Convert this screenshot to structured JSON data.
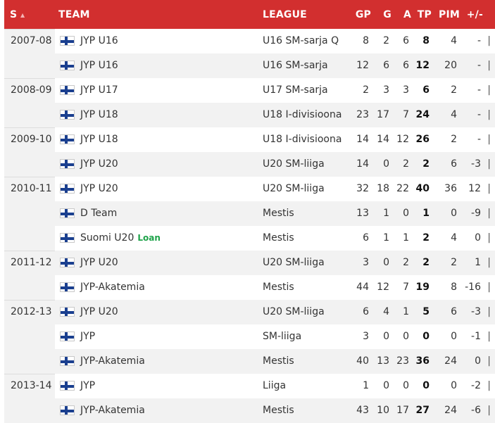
{
  "columns": {
    "season": "S",
    "team": "TEAM",
    "league": "LEAGUE",
    "gp": "GP",
    "g": "G",
    "a": "A",
    "tp": "TP",
    "pim": "PIM",
    "pm": "+/-"
  },
  "colors": {
    "header": "#d22f2f",
    "loan": "#1ea34a",
    "shade": "#f2f2f2"
  },
  "rows": [
    {
      "season": "2007-08",
      "team": "JYP U16",
      "league": "U16 SM-sarja Q",
      "gp": "8",
      "g": "2",
      "a": "6",
      "tp": "8",
      "pim": "4",
      "pm": "-",
      "bar": "|"
    },
    {
      "season": "",
      "team": "JYP U16",
      "league": "U16 SM-sarja",
      "gp": "12",
      "g": "6",
      "a": "6",
      "tp": "12",
      "pim": "20",
      "pm": "-",
      "bar": "|"
    },
    {
      "season": "2008-09",
      "team": "JYP U17",
      "league": "U17 SM-sarja",
      "gp": "2",
      "g": "3",
      "a": "3",
      "tp": "6",
      "pim": "2",
      "pm": "-",
      "bar": "|"
    },
    {
      "season": "",
      "team": "JYP U18",
      "league": "U18 I-divisioona",
      "gp": "23",
      "g": "17",
      "a": "7",
      "tp": "24",
      "pim": "4",
      "pm": "-",
      "bar": "|"
    },
    {
      "season": "2009-10",
      "team": "JYP U18",
      "league": "U18 I-divisioona",
      "gp": "14",
      "g": "14",
      "a": "12",
      "tp": "26",
      "pim": "2",
      "pm": "-",
      "bar": "|"
    },
    {
      "season": "",
      "team": "JYP U20",
      "league": "U20 SM-liiga",
      "gp": "14",
      "g": "0",
      "a": "2",
      "tp": "2",
      "pim": "6",
      "pm": "-3",
      "bar": "|"
    },
    {
      "season": "2010-11",
      "team": "JYP U20",
      "league": "U20 SM-liiga",
      "gp": "32",
      "g": "18",
      "a": "22",
      "tp": "40",
      "pim": "36",
      "pm": "12",
      "bar": "|"
    },
    {
      "season": "",
      "team": "D Team",
      "league": "Mestis",
      "gp": "13",
      "g": "1",
      "a": "0",
      "tp": "1",
      "pim": "0",
      "pm": "-9",
      "bar": "|"
    },
    {
      "season": "",
      "team": "Suomi U20",
      "loan": "Loan",
      "league": "Mestis",
      "gp": "6",
      "g": "1",
      "a": "1",
      "tp": "2",
      "pim": "4",
      "pm": "0",
      "bar": "|"
    },
    {
      "season": "2011-12",
      "team": "JYP U20",
      "league": "U20 SM-liiga",
      "gp": "3",
      "g": "0",
      "a": "2",
      "tp": "2",
      "pim": "2",
      "pm": "1",
      "bar": "|"
    },
    {
      "season": "",
      "team": "JYP-Akatemia",
      "league": "Mestis",
      "gp": "44",
      "g": "12",
      "a": "7",
      "tp": "19",
      "pim": "8",
      "pm": "-16",
      "bar": "|"
    },
    {
      "season": "2012-13",
      "team": "JYP U20",
      "league": "U20 SM-liiga",
      "gp": "6",
      "g": "4",
      "a": "1",
      "tp": "5",
      "pim": "6",
      "pm": "-3",
      "bar": "|"
    },
    {
      "season": "",
      "team": "JYP",
      "league": "SM-liiga",
      "gp": "3",
      "g": "0",
      "a": "0",
      "tp": "0",
      "pim": "0",
      "pm": "-1",
      "bar": "|"
    },
    {
      "season": "",
      "team": "JYP-Akatemia",
      "league": "Mestis",
      "gp": "40",
      "g": "13",
      "a": "23",
      "tp": "36",
      "pim": "24",
      "pm": "0",
      "bar": "|"
    },
    {
      "season": "2013-14",
      "team": "JYP",
      "league": "Liiga",
      "gp": "1",
      "g": "0",
      "a": "0",
      "tp": "0",
      "pim": "0",
      "pm": "-2",
      "bar": "|"
    },
    {
      "season": "",
      "team": "JYP-Akatemia",
      "league": "Mestis",
      "gp": "43",
      "g": "10",
      "a": "17",
      "tp": "27",
      "pim": "24",
      "pm": "-6",
      "bar": "|"
    }
  ]
}
